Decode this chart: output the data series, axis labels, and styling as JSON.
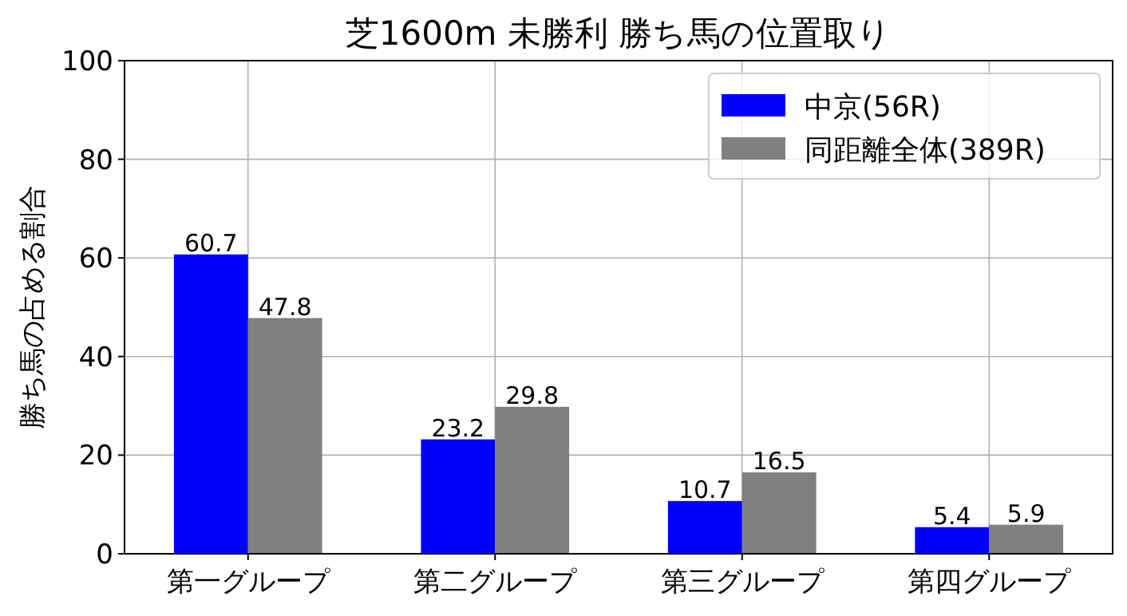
{
  "chart_data": {
    "type": "bar",
    "title": "芝1600m 未勝利 勝ち馬の位置取り",
    "ylabel": "勝ち馬の占める割合",
    "categories": [
      "第一グループ",
      "第二グループ",
      "第三グループ",
      "第四グループ"
    ],
    "series": [
      {
        "name": "中京(56R)",
        "color": "#0000ff",
        "values": [
          60.7,
          23.2,
          10.7,
          5.4
        ]
      },
      {
        "name": "同距離全体(389R)",
        "color": "#808080",
        "values": [
          47.8,
          29.8,
          16.5,
          5.9
        ]
      }
    ],
    "ylim": [
      0,
      100
    ],
    "yticks": [
      0,
      20,
      40,
      60,
      80,
      100
    ],
    "grid": true,
    "legend": "top right",
    "data_labels": true
  }
}
